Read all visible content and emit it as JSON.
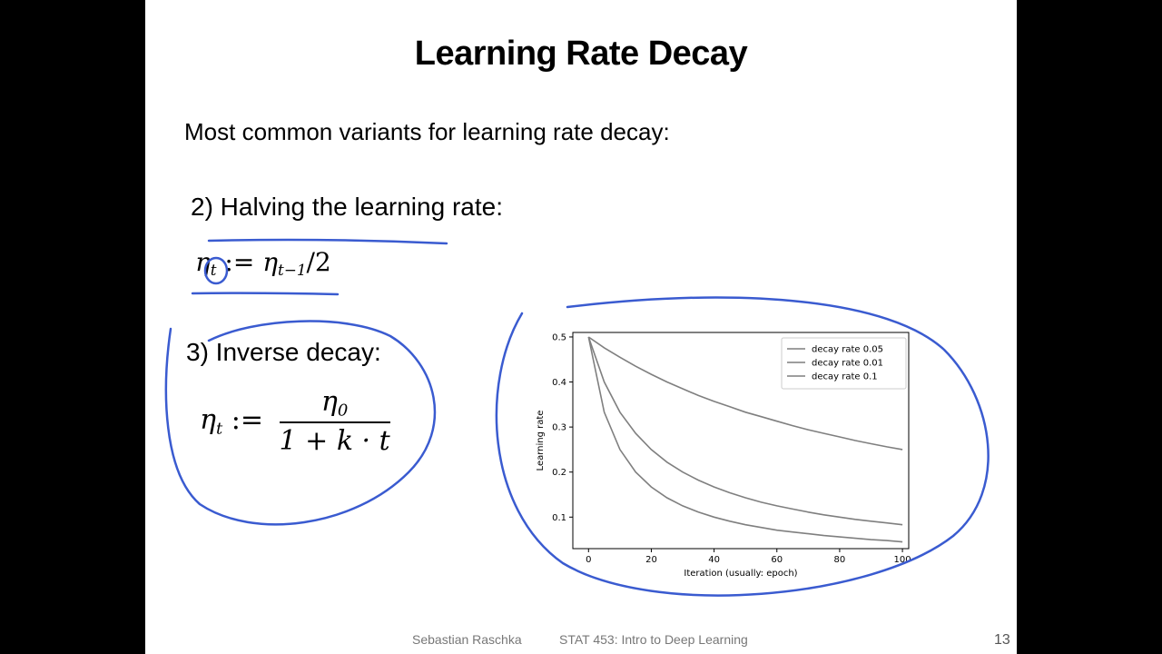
{
  "slide": {
    "title": "Learning Rate Decay",
    "intro": "Most common variants for learning rate decay:",
    "item2_heading": "2) Halving the learning rate:",
    "item3_heading": "3) Inverse decay:",
    "eq1": {
      "lhs": "η",
      "lhs_sub": "t",
      "assign": " := ",
      "rhs": "η",
      "rhs_sub": "t−1",
      "tail": "/2"
    },
    "eq2": {
      "lhs": "η",
      "lhs_sub": "t",
      "assign": " := ",
      "numerator": "η",
      "numerator_sub": "0",
      "denominator": "1 + k · t"
    },
    "footer_author": "Sebastian Raschka",
    "footer_course": "STAT 453: Intro to Deep Learning",
    "page_number": "13"
  },
  "colors": {
    "annotation_ink": "#3a5bd0",
    "line_color": "#7f7f7f"
  },
  "chart_data": {
    "type": "line",
    "xlabel": "Iteration (usually: epoch)",
    "ylabel": "Learning rate",
    "xlim": [
      -5,
      102
    ],
    "ylim": [
      0.03,
      0.51
    ],
    "xticks": [
      0,
      20,
      40,
      60,
      80,
      100
    ],
    "yticks": [
      0.1,
      0.2,
      0.3,
      0.4,
      0.5
    ],
    "legend_position": "top-right",
    "grid": false,
    "series": [
      {
        "name": "decay rate 0.05",
        "x": [
          0,
          5,
          10,
          15,
          20,
          25,
          30,
          35,
          40,
          45,
          50,
          55,
          60,
          65,
          70,
          75,
          80,
          85,
          90,
          95,
          100
        ],
        "y": [
          0.5,
          0.4,
          0.333,
          0.286,
          0.25,
          0.222,
          0.2,
          0.182,
          0.167,
          0.154,
          0.143,
          0.133,
          0.125,
          0.118,
          0.111,
          0.105,
          0.1,
          0.095,
          0.091,
          0.087,
          0.083
        ]
      },
      {
        "name": "decay rate 0.01",
        "x": [
          0,
          5,
          10,
          15,
          20,
          25,
          30,
          35,
          40,
          45,
          50,
          55,
          60,
          65,
          70,
          75,
          80,
          85,
          90,
          95,
          100
        ],
        "y": [
          0.5,
          0.476,
          0.455,
          0.435,
          0.417,
          0.4,
          0.385,
          0.37,
          0.357,
          0.345,
          0.333,
          0.323,
          0.313,
          0.303,
          0.294,
          0.286,
          0.278,
          0.27,
          0.263,
          0.256,
          0.25
        ]
      },
      {
        "name": "decay rate 0.1",
        "x": [
          0,
          5,
          10,
          15,
          20,
          25,
          30,
          35,
          40,
          45,
          50,
          55,
          60,
          65,
          70,
          75,
          80,
          85,
          90,
          95,
          100
        ],
        "y": [
          0.5,
          0.333,
          0.25,
          0.2,
          0.167,
          0.143,
          0.125,
          0.111,
          0.1,
          0.091,
          0.083,
          0.077,
          0.071,
          0.067,
          0.063,
          0.059,
          0.056,
          0.053,
          0.05,
          0.048,
          0.045
        ]
      }
    ]
  }
}
